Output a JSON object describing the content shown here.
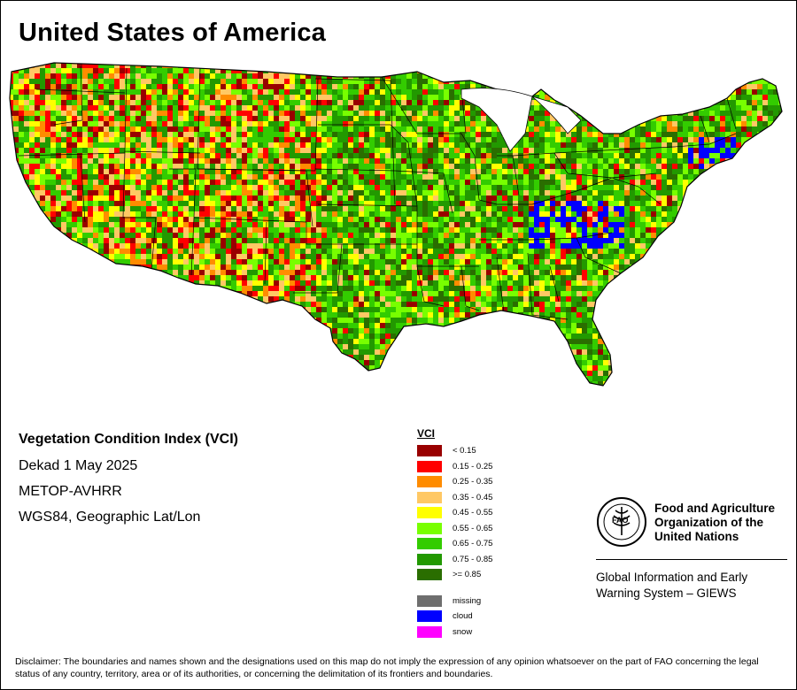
{
  "title": "United States of America",
  "info": {
    "index_title": "Vegetation Condition Index (VCI)",
    "dekad": "Dekad 1 May 2025",
    "sensor": "METOP-AVHRR",
    "projection": "WGS84, Geographic Lat/Lon"
  },
  "legend": {
    "title": "VCI",
    "classes": [
      {
        "label": "< 0.15",
        "color": "#990000"
      },
      {
        "label": "0.15 - 0.25",
        "color": "#ff0000"
      },
      {
        "label": "0.25 - 0.35",
        "color": "#ff8c00"
      },
      {
        "label": "0.35 - 0.45",
        "color": "#ffc864"
      },
      {
        "label": "0.45 - 0.55",
        "color": "#ffff00"
      },
      {
        "label": "0.55 - 0.65",
        "color": "#78ff00"
      },
      {
        "label": "0.65 - 0.75",
        "color": "#33cc00"
      },
      {
        "label": "0.75 - 0.85",
        "color": "#229900"
      },
      {
        "label": ">= 0.85",
        "color": "#2a6e00"
      }
    ],
    "extra": [
      {
        "label": "missing",
        "color": "#6e6e6e"
      },
      {
        "label": "cloud",
        "color": "#0000ff"
      },
      {
        "label": "snow",
        "color": "#ff00ff"
      }
    ]
  },
  "org": {
    "logo_text": "FAO",
    "name": "Food and Agriculture Organization of the United Nations",
    "system": "Global Information and Early Warning System – GIEWS"
  },
  "disclaimer": "Disclaimer: The boundaries and names shown and the designations used on this map do not imply the expression of any opinion whatsoever on the part of FAO concerning the legal status of any country, territory, area or of its authorities, or concerning the delimitation of its frontiers and boundaries."
}
